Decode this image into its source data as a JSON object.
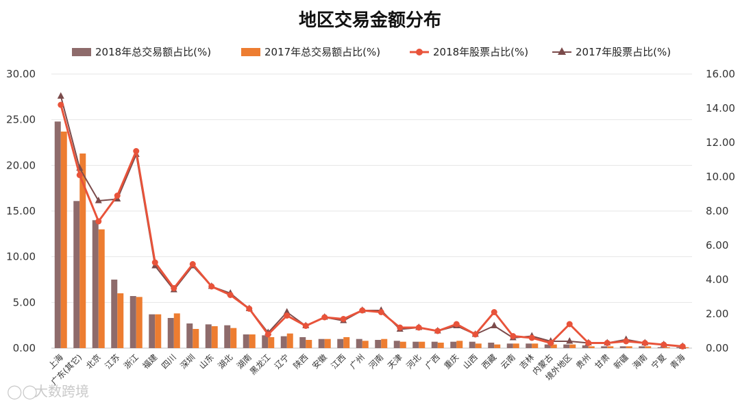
{
  "chart_data": {
    "type": "bar",
    "title": "地区交易金额分布",
    "categories": [
      "上海",
      "广东(其它)",
      "北京",
      "江苏",
      "浙江",
      "福建",
      "四川",
      "深圳",
      "山东",
      "湖北",
      "湖南",
      "黑龙江",
      "辽宁",
      "陕西",
      "安徽",
      "江西",
      "广州",
      "河南",
      "天津",
      "河北",
      "广西",
      "重庆",
      "山西",
      "西藏",
      "云南",
      "吉林",
      "内蒙古",
      "境外地区",
      "贵州",
      "甘肃",
      "新疆",
      "海南",
      "宁夏",
      "青海"
    ],
    "left_axis": {
      "ylim": [
        0,
        30
      ],
      "ticks": [
        "0.00",
        "5.00",
        "10.00",
        "15.00",
        "20.00",
        "25.00",
        "30.00"
      ]
    },
    "right_axis": {
      "ylim": [
        0,
        16
      ],
      "ticks": [
        "0.00",
        "2.00",
        "4.00",
        "6.00",
        "8.00",
        "10.00",
        "12.00",
        "14.00",
        "16.00"
      ]
    },
    "series": [
      {
        "name": "2018年总交易额占比(%)",
        "kind": "bar",
        "axis": "left",
        "color": "#8e6b6b",
        "values": [
          24.8,
          16.1,
          14.0,
          7.5,
          5.7,
          3.7,
          3.3,
          2.7,
          2.6,
          2.5,
          1.5,
          1.4,
          1.3,
          1.2,
          1.0,
          1.0,
          1.0,
          0.9,
          0.8,
          0.7,
          0.7,
          0.7,
          0.7,
          0.6,
          0.5,
          0.5,
          0.4,
          0.4,
          0.3,
          0.2,
          0.2,
          0.2,
          0.1,
          0.1
        ]
      },
      {
        "name": "2017年总交易额占比(%)",
        "kind": "bar",
        "axis": "left",
        "color": "#ed7d31",
        "values": [
          23.7,
          21.3,
          13.0,
          6.0,
          5.6,
          3.7,
          3.8,
          2.1,
          2.4,
          2.2,
          1.5,
          1.2,
          1.6,
          0.9,
          1.0,
          1.2,
          0.8,
          1.0,
          0.7,
          0.7,
          0.6,
          0.8,
          0.5,
          0.4,
          0.5,
          0.5,
          0.4,
          0.4,
          0.2,
          0.2,
          0.2,
          0.2,
          0.1,
          0.1
        ]
      },
      {
        "name": "2018年股票占比(%)",
        "kind": "line",
        "axis": "right",
        "color": "#e8533a",
        "marker": "circle",
        "values": [
          14.2,
          10.1,
          7.4,
          8.9,
          11.5,
          5.0,
          3.5,
          4.9,
          3.6,
          3.1,
          2.3,
          0.8,
          1.9,
          1.3,
          1.8,
          1.7,
          2.2,
          2.1,
          1.2,
          1.2,
          1.0,
          1.4,
          0.8,
          2.1,
          0.7,
          0.6,
          0.3,
          1.4,
          0.3,
          0.3,
          0.4,
          0.3,
          0.2,
          0.1
        ]
      },
      {
        "name": "2017年股票占比(%)",
        "kind": "line",
        "axis": "right",
        "color": "#7b4b4b",
        "marker": "triangle",
        "values": [
          14.7,
          10.5,
          8.6,
          8.7,
          11.3,
          4.8,
          3.4,
          4.8,
          3.6,
          3.2,
          2.3,
          0.9,
          2.1,
          1.3,
          1.8,
          1.6,
          2.2,
          2.2,
          1.1,
          1.2,
          1.0,
          1.3,
          0.8,
          1.3,
          0.6,
          0.7,
          0.4,
          0.4,
          0.3,
          0.3,
          0.5,
          0.3,
          0.2,
          0.1
        ]
      }
    ],
    "legend_position": "top",
    "grid": true
  },
  "watermark": "大数跨境"
}
